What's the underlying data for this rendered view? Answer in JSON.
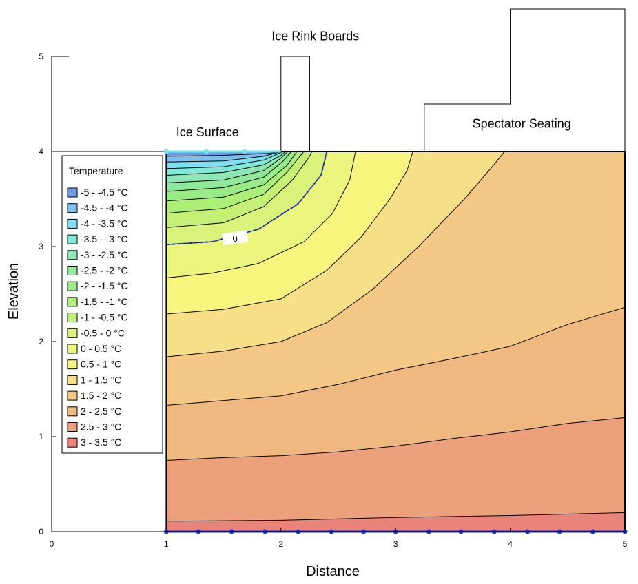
{
  "chart_data": {
    "type": "contour",
    "xlabel": "Distance",
    "ylabel": "Elevation",
    "xlim": [
      0,
      5
    ],
    "ylim": [
      0,
      5
    ],
    "x_ticks": [
      "0",
      "1",
      "2",
      "3",
      "4",
      "5"
    ],
    "y_ticks": [
      "0",
      "1",
      "2",
      "3",
      "4",
      "5"
    ],
    "annotations": [
      {
        "text": "Ice Rink Boards",
        "x": 2.3,
        "y": 5.17
      },
      {
        "text": "Ice Surface",
        "x": 1.36,
        "y": 4.16
      },
      {
        "text": "Spectator Seating",
        "x": 4.1,
        "y": 4.25
      }
    ],
    "contour_label": {
      "text": "0",
      "x": 1.6,
      "y": 3.08
    },
    "legend": {
      "title": "Temperature",
      "position": "top-left",
      "entries": [
        {
          "label": "-5 - -4.5 °C",
          "color": "#6f9ce6"
        },
        {
          "label": "-4.5 - -4 °C",
          "color": "#7cc1f0"
        },
        {
          "label": "-4 - -3.5 °C",
          "color": "#7fe0f2"
        },
        {
          "label": "-3.5 - -3 °C",
          "color": "#7fe8d6"
        },
        {
          "label": "-3 - -2.5 °C",
          "color": "#8ee8b6"
        },
        {
          "label": "-2.5 - -2 °C",
          "color": "#8eea9a"
        },
        {
          "label": "-2 - -1.5 °C",
          "color": "#99eb86"
        },
        {
          "label": "-1.5 - -1 °C",
          "color": "#acef76"
        },
        {
          "label": "-1 - -0.5 °C",
          "color": "#c4f175"
        },
        {
          "label": "-0.5 - 0 °C",
          "color": "#d8f27a"
        },
        {
          "label": "0 - 0.5 °C",
          "color": "#eaf77c"
        },
        {
          "label": "0.5 - 1 °C",
          "color": "#f8f57f"
        },
        {
          "label": "1 - 1.5 °C",
          "color": "#f6df86"
        },
        {
          "label": "1.5 - 2 °C",
          "color": "#f4c884"
        },
        {
          "label": "2 - 2.5 °C",
          "color": "#efb880"
        },
        {
          "label": "2.5 - 3 °C",
          "color": "#eca07c"
        },
        {
          "label": "3 - 3.5 °C",
          "color": "#e88478"
        }
      ]
    },
    "geometry": {
      "ground_region": [
        [
          1,
          0
        ],
        [
          5,
          0
        ],
        [
          5,
          4
        ],
        [
          1,
          4
        ]
      ],
      "air_outline": [
        [
          0,
          0
        ],
        [
          1,
          0
        ],
        [
          1,
          4
        ],
        [
          2,
          4
        ],
        [
          2,
          5
        ],
        [
          2.25,
          5
        ],
        [
          2.25,
          4
        ],
        [
          3.25,
          4
        ],
        [
          3.25,
          4.5
        ],
        [
          4,
          4.5
        ],
        [
          4,
          5.5
        ],
        [
          5,
          5.5
        ],
        [
          5,
          4
        ],
        [
          1,
          4
        ],
        [
          0,
          4
        ],
        [
          0,
          5
        ],
        [
          0.15,
          5
        ]
      ],
      "ice_surface_points": [
        [
          1,
          4
        ],
        [
          1.35,
          4
        ],
        [
          1.68,
          4
        ]
      ],
      "bottom_boundary_points": [
        [
          1,
          0
        ],
        [
          1.28,
          0
        ],
        [
          1.57,
          0
        ],
        [
          1.86,
          0
        ],
        [
          2.15,
          0
        ],
        [
          2.44,
          0
        ],
        [
          2.72,
          0
        ],
        [
          3,
          0
        ],
        [
          3.29,
          0
        ],
        [
          3.57,
          0
        ],
        [
          3.86,
          0
        ],
        [
          4.15,
          0
        ],
        [
          4.43,
          0
        ],
        [
          4.72,
          0
        ],
        [
          5,
          0
        ]
      ]
    },
    "contour_bands": [
      {
        "range": "3 - 3.5 °C",
        "color": "#e88478",
        "top": [
          [
            1,
            0.11
          ],
          [
            2,
            0.12
          ],
          [
            3,
            0.15
          ],
          [
            4,
            0.17
          ],
          [
            5,
            0.2
          ]
        ]
      },
      {
        "range": "2.5 - 3 °C",
        "color": "#eca07c",
        "top": [
          [
            1,
            0.75
          ],
          [
            1.5,
            0.78
          ],
          [
            2,
            0.8
          ],
          [
            2.5,
            0.84
          ],
          [
            3,
            0.9
          ],
          [
            3.5,
            0.98
          ],
          [
            4,
            1.05
          ],
          [
            4.5,
            1.14
          ],
          [
            5,
            1.2
          ]
        ]
      },
      {
        "range": "2 - 2.5 °C",
        "color": "#efb880",
        "top": [
          [
            1,
            1.33
          ],
          [
            1.5,
            1.38
          ],
          [
            2,
            1.43
          ],
          [
            2.5,
            1.55
          ],
          [
            3,
            1.7
          ],
          [
            3.5,
            1.82
          ],
          [
            4,
            1.95
          ],
          [
            4.5,
            2.18
          ],
          [
            5,
            2.36
          ]
        ]
      },
      {
        "range": "1.5 - 2 °C",
        "color": "#f4c884",
        "top": [
          [
            1,
            1.84
          ],
          [
            1.5,
            1.9
          ],
          [
            2,
            2.0
          ],
          [
            2.4,
            2.2
          ],
          [
            2.8,
            2.55
          ],
          [
            3.2,
            3.0
          ],
          [
            3.6,
            3.5
          ],
          [
            3.85,
            3.85
          ],
          [
            3.95,
            4.0
          ]
        ]
      },
      {
        "range": "1 - 1.5 °C",
        "color": "#f6df86",
        "top": [
          [
            1,
            2.29
          ],
          [
            1.5,
            2.34
          ],
          [
            2,
            2.45
          ],
          [
            2.4,
            2.75
          ],
          [
            2.7,
            3.1
          ],
          [
            2.95,
            3.5
          ],
          [
            3.1,
            3.8
          ],
          [
            3.15,
            4.0
          ]
        ]
      },
      {
        "range": "0.5 - 1 °C",
        "color": "#f8f57f",
        "top": [
          [
            1,
            2.67
          ],
          [
            1.4,
            2.72
          ],
          [
            1.8,
            2.82
          ],
          [
            2.2,
            3.05
          ],
          [
            2.45,
            3.35
          ],
          [
            2.6,
            3.7
          ],
          [
            2.65,
            4.0
          ]
        ]
      },
      {
        "range": "0 - 0.5 °C",
        "color": "#eaf77c",
        "top": [
          [
            1,
            3.02
          ],
          [
            1.4,
            3.05
          ],
          [
            1.8,
            3.18
          ],
          [
            2.15,
            3.45
          ],
          [
            2.35,
            3.75
          ],
          [
            2.4,
            4.0
          ]
        ]
      },
      {
        "range": "-0.5 - 0 °C",
        "color": "#d8f27a",
        "top": [
          [
            1,
            3.2
          ],
          [
            1.5,
            3.25
          ],
          [
            1.85,
            3.42
          ],
          [
            2.1,
            3.7
          ],
          [
            2.25,
            3.95
          ],
          [
            2.27,
            4.0
          ]
        ]
      },
      {
        "range": "-1 - -0.5 °C",
        "color": "#c4f175",
        "top": [
          [
            1,
            3.35
          ],
          [
            1.5,
            3.4
          ],
          [
            1.85,
            3.55
          ],
          [
            2.05,
            3.78
          ],
          [
            2.2,
            4.0
          ]
        ]
      },
      {
        "range": "-1.5 - -1 °C",
        "color": "#acef76",
        "top": [
          [
            1,
            3.48
          ],
          [
            1.5,
            3.52
          ],
          [
            1.85,
            3.65
          ],
          [
            2.05,
            3.85
          ],
          [
            2.14,
            4.0
          ]
        ]
      },
      {
        "range": "-2 - -1.5 °C",
        "color": "#99eb86",
        "top": [
          [
            1,
            3.58
          ],
          [
            1.5,
            3.62
          ],
          [
            1.85,
            3.73
          ],
          [
            2.02,
            3.9
          ],
          [
            2.09,
            4.0
          ]
        ]
      },
      {
        "range": "-2.5 - -2 °C",
        "color": "#8eea9a",
        "top": [
          [
            1,
            3.67
          ],
          [
            1.5,
            3.7
          ],
          [
            1.85,
            3.8
          ],
          [
            2.0,
            3.93
          ],
          [
            2.06,
            4.0
          ]
        ]
      },
      {
        "range": "-3 - -2.5 °C",
        "color": "#8ee8b6",
        "top": [
          [
            1,
            3.75
          ],
          [
            1.5,
            3.78
          ],
          [
            1.85,
            3.86
          ],
          [
            2.0,
            3.96
          ],
          [
            2.04,
            4.0
          ]
        ]
      },
      {
        "range": "-3.5 - -3 °C",
        "color": "#7fe8d6",
        "top": [
          [
            1,
            3.82
          ],
          [
            1.5,
            3.84
          ],
          [
            1.85,
            3.91
          ],
          [
            2.02,
            4.0
          ]
        ]
      },
      {
        "range": "-4 - -3.5 °C",
        "color": "#7fe0f2",
        "top": [
          [
            1,
            3.89
          ],
          [
            1.5,
            3.9
          ],
          [
            1.85,
            3.95
          ],
          [
            2.01,
            4.0
          ]
        ]
      },
      {
        "range": "-4.5 - -4 °C",
        "color": "#7cc1f0",
        "top": [
          [
            1,
            3.95
          ],
          [
            1.5,
            3.96
          ],
          [
            1.9,
            3.98
          ],
          [
            2.0,
            4.0
          ]
        ]
      },
      {
        "range": "-5 - -4.5 °C",
        "color": "#6f9ce6",
        "top": [
          [
            1,
            4.0
          ],
          [
            2.0,
            4.0
          ]
        ]
      }
    ],
    "zero_contour": [
      [
        1,
        3.02
      ],
      [
        1.4,
        3.05
      ],
      [
        1.8,
        3.18
      ],
      [
        2.15,
        3.45
      ],
      [
        2.35,
        3.75
      ],
      [
        2.4,
        4.0
      ]
    ]
  }
}
